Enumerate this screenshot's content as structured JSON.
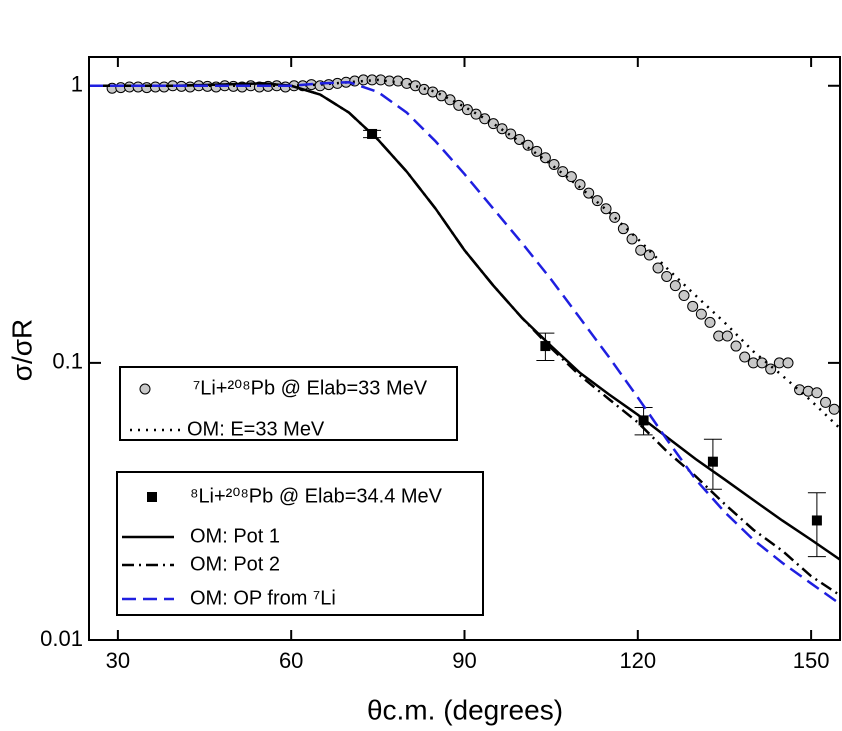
{
  "chart_data": {
    "type": "line",
    "xlabel": "θc.m. (degrees)",
    "ylabel": "σ/σR",
    "xlim": [
      25,
      155
    ],
    "xticks": [
      30,
      60,
      90,
      120,
      150
    ],
    "ylim": [
      0.01,
      1.27
    ],
    "yticks": [
      0.01,
      0.1,
      1
    ],
    "log_y": true,
    "series": [
      {
        "name": "⁷Li+²⁰⁸Pb @ Elab=33 MeV",
        "type": "scatter",
        "marker": "circle",
        "color": "#c8c8c8",
        "x": [
          29,
          30.5,
          32,
          33.5,
          35,
          36.5,
          38,
          39.5,
          41,
          42.5,
          44,
          45.5,
          47,
          48.5,
          50,
          51.5,
          53,
          54.5,
          56,
          57.5,
          59,
          60.5,
          62,
          63.5,
          65,
          66.5,
          68,
          69.5,
          71,
          72.5,
          74,
          75.5,
          77,
          78.5,
          80,
          81.5,
          83,
          84.5,
          86,
          87.5,
          89,
          90.5,
          92,
          93.5,
          95,
          96.5,
          98,
          99.5,
          101,
          102.5,
          104,
          105.5,
          107,
          108.5,
          110,
          111.5,
          113,
          114.5,
          116,
          117.5,
          119,
          120.5,
          122,
          123.5,
          125,
          126.5,
          128,
          129.5,
          131,
          132.5,
          134,
          135.5,
          137,
          138.5,
          140,
          141.5,
          143,
          144.5,
          146,
          148,
          149.5,
          151,
          152.5,
          154
        ],
        "values": [
          0.98,
          0.985,
          0.99,
          0.99,
          0.985,
          0.99,
          0.99,
          1.0,
          0.995,
          0.99,
          1.0,
          0.995,
          0.99,
          1.0,
          0.995,
          0.99,
          1.0,
          0.99,
          0.995,
          1.0,
          0.99,
          1.0,
          1.0,
          1.01,
          1.0,
          1.01,
          1.02,
          1.03,
          1.04,
          1.05,
          1.05,
          1.05,
          1.04,
          1.04,
          1.02,
          1.0,
          0.97,
          0.95,
          0.92,
          0.89,
          0.85,
          0.82,
          0.79,
          0.76,
          0.73,
          0.7,
          0.67,
          0.64,
          0.61,
          0.58,
          0.55,
          0.52,
          0.49,
          0.47,
          0.44,
          0.41,
          0.385,
          0.36,
          0.335,
          0.305,
          0.28,
          0.255,
          0.245,
          0.22,
          0.205,
          0.19,
          0.175,
          0.16,
          0.15,
          0.14,
          0.125,
          0.125,
          0.115,
          0.105,
          0.1,
          0.1,
          0.095,
          0.1,
          0.1,
          0.08,
          0.079,
          0.078,
          0.072,
          0.068
        ]
      },
      {
        "name": "OM: E=33 MeV",
        "type": "line",
        "dash": "dotted",
        "color": "#000000",
        "x": [
          25,
          40,
          55,
          60,
          65,
          70,
          75,
          80,
          85,
          90,
          95,
          100,
          105,
          110,
          115,
          120,
          125,
          130,
          135,
          140,
          145,
          150,
          155
        ],
        "values": [
          1,
          1,
          1,
          1,
          1.01,
          1.03,
          1.05,
          1.02,
          0.95,
          0.84,
          0.73,
          0.62,
          0.52,
          0.43,
          0.35,
          0.28,
          0.22,
          0.175,
          0.14,
          0.11,
          0.09,
          0.073,
          0.058
        ]
      },
      {
        "name": "⁸Li+²⁰⁸Pb @ Elab=34.4 MeV",
        "type": "scatter",
        "marker": "square",
        "color": "#000000",
        "x": [
          74,
          104,
          121,
          133,
          151
        ],
        "values": [
          0.67,
          0.115,
          0.062,
          0.044,
          0.027
        ],
        "errors": [
          0.02,
          0.013,
          0.007,
          0.009,
          0.007
        ]
      },
      {
        "name": "OM: Pot 1",
        "type": "line",
        "dash": "solid",
        "color": "#000000",
        "x": [
          25,
          40,
          55,
          60,
          65,
          70,
          75,
          80,
          85,
          90,
          95,
          100,
          105,
          110,
          115,
          120,
          125,
          130,
          135,
          140,
          145,
          150,
          155
        ],
        "values": [
          1,
          1,
          1.02,
          1.0,
          0.93,
          0.8,
          0.64,
          0.49,
          0.36,
          0.255,
          0.19,
          0.145,
          0.115,
          0.092,
          0.077,
          0.065,
          0.054,
          0.045,
          0.038,
          0.032,
          0.027,
          0.023,
          0.0195
        ]
      },
      {
        "name": "OM: Pot 2",
        "type": "line",
        "dash": "dashdot",
        "color": "#000000",
        "x": [
          25,
          40,
          55,
          60,
          65,
          70,
          75,
          80,
          85,
          90,
          95,
          100,
          105,
          110,
          115,
          120,
          125,
          130,
          135,
          140,
          145,
          150,
          155
        ],
        "values": [
          1,
          1,
          1.02,
          1.0,
          0.93,
          0.8,
          0.64,
          0.49,
          0.36,
          0.255,
          0.19,
          0.145,
          0.113,
          0.09,
          0.074,
          0.061,
          0.048,
          0.039,
          0.031,
          0.025,
          0.021,
          0.017,
          0.0145
        ]
      },
      {
        "name": "OM: OP from ⁷Li",
        "type": "line",
        "dash": "dashed",
        "color": "#1f1fe0",
        "x": [
          25,
          40,
          55,
          60,
          65,
          70,
          75,
          80,
          85,
          90,
          95,
          100,
          105,
          110,
          115,
          120,
          125,
          130,
          135,
          140,
          145,
          150,
          155
        ],
        "values": [
          1,
          1,
          1,
          1,
          1.02,
          1.03,
          0.95,
          0.8,
          0.63,
          0.48,
          0.36,
          0.27,
          0.2,
          0.145,
          0.105,
          0.075,
          0.053,
          0.038,
          0.029,
          0.023,
          0.019,
          0.016,
          0.0135
        ]
      }
    ]
  }
}
